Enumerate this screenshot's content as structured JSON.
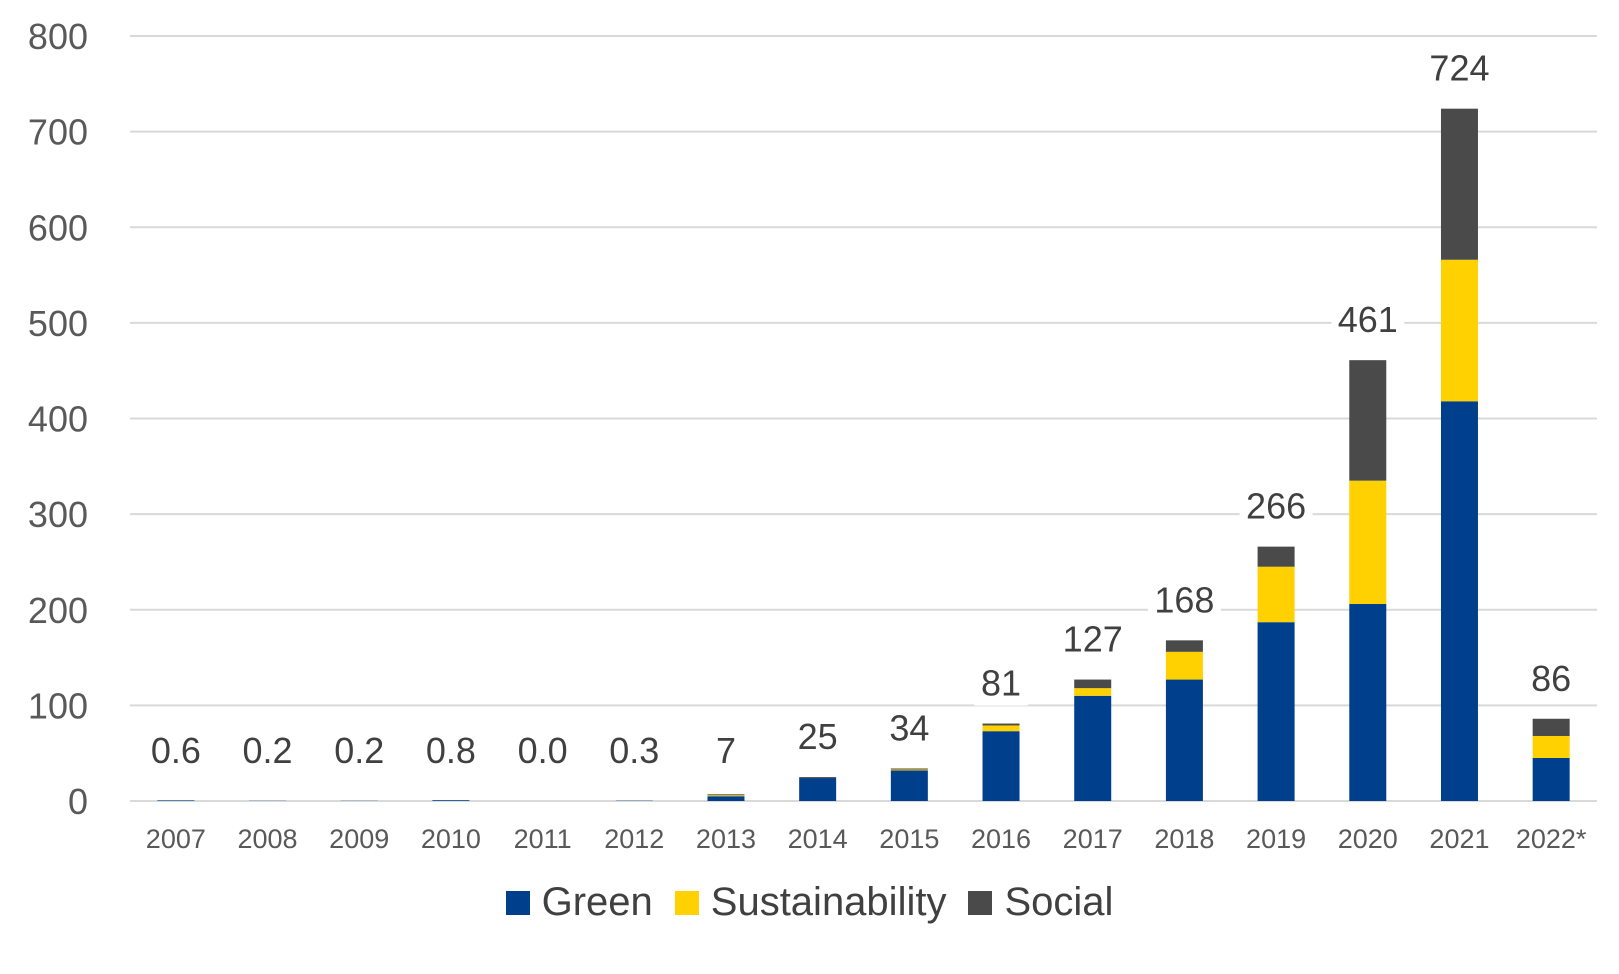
{
  "chart_data": {
    "type": "bar",
    "stacked": true,
    "categories": [
      "2007",
      "2008",
      "2009",
      "2010",
      "2011",
      "2012",
      "2013",
      "2014",
      "2015",
      "2016",
      "2017",
      "2018",
      "2019",
      "2020",
      "2021",
      "2022*"
    ],
    "series": [
      {
        "name": "Green",
        "color": "#003f8c",
        "values": [
          0.6,
          0.2,
          0.2,
          0.8,
          0.0,
          0.3,
          5,
          24,
          32,
          73,
          110,
          127,
          187,
          206,
          418,
          45
        ]
      },
      {
        "name": "Sustainability",
        "color": "#ffd100",
        "values": [
          0,
          0,
          0,
          0,
          0,
          0,
          1,
          0,
          1,
          6,
          8,
          29,
          58,
          129,
          148,
          23
        ]
      },
      {
        "name": "Social",
        "color": "#4a4a4a",
        "values": [
          0,
          0,
          0,
          0,
          0,
          0,
          1,
          1,
          1,
          2,
          9,
          12,
          21,
          126,
          158,
          18
        ]
      }
    ],
    "totals": [
      0.6,
      0.2,
      0.2,
      0.8,
      0.0,
      0.3,
      7,
      25,
      34,
      81,
      127,
      168,
      266,
      461,
      724,
      86
    ],
    "total_labels": [
      "0.6",
      "0.2",
      "0.2",
      "0.8",
      "0.0",
      "0.3",
      "7",
      "25",
      "34",
      "81",
      "127",
      "168",
      "266",
      "461",
      "724",
      "86"
    ],
    "ylim": [
      0,
      800
    ],
    "yticks": [
      "0",
      "100",
      "200",
      "300",
      "400",
      "500",
      "600",
      "700",
      "800"
    ],
    "grid": true,
    "legend_position": "bottom"
  }
}
